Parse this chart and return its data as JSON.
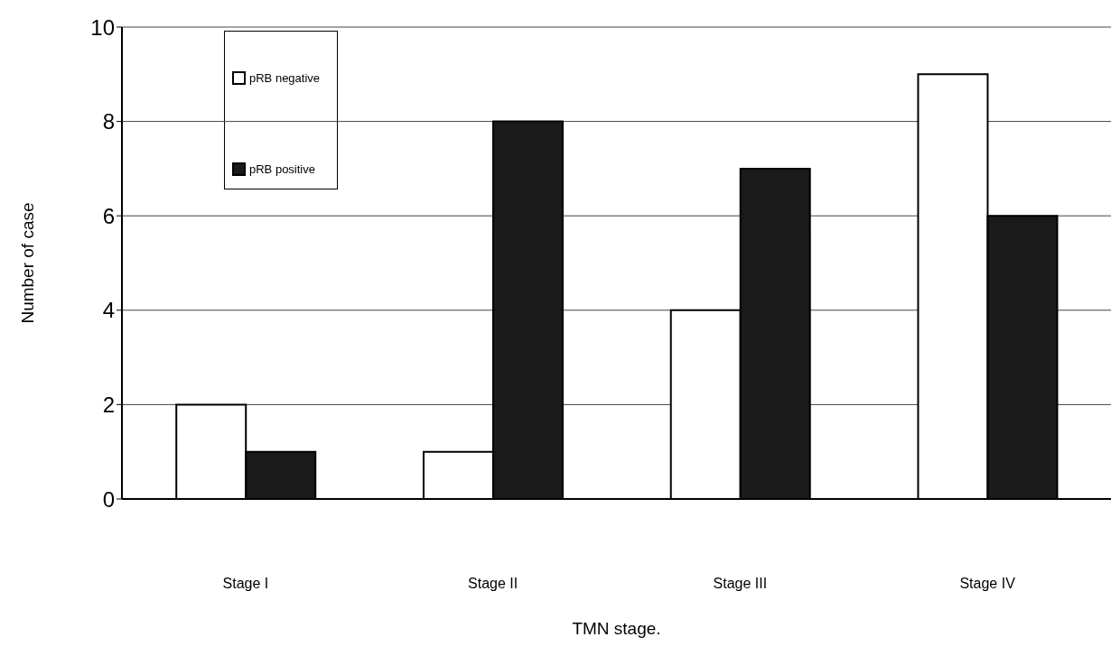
{
  "chart_data": {
    "type": "bar",
    "xlabel": "TMN stage.",
    "ylabel": "Number of case",
    "categories": [
      "Stage I",
      "Stage II",
      "Stage III",
      "Stage IV"
    ],
    "series": [
      {
        "name": "pRB negative",
        "color": "#ffffff",
        "values": [
          2,
          1,
          4,
          9
        ]
      },
      {
        "name": "pRB positive",
        "color": "#1a1a1a",
        "values": [
          1,
          8,
          7,
          6
        ]
      }
    ],
    "ylim": [
      0,
      10
    ],
    "yticks": [
      0,
      2,
      4,
      6,
      8,
      10
    ],
    "grid": "y",
    "legend": "top left"
  }
}
